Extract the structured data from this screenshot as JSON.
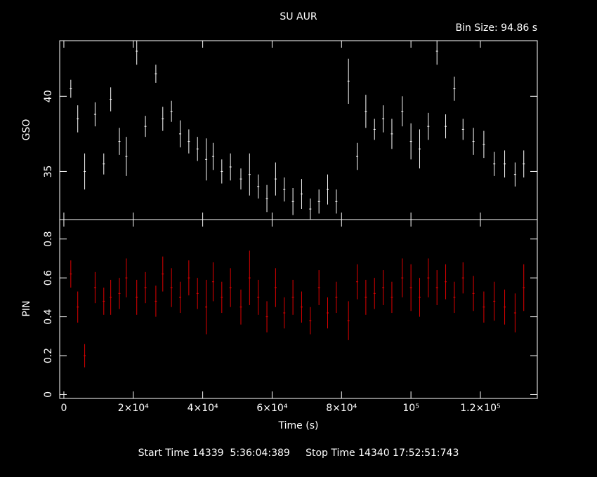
{
  "chart_data": [
    {
      "type": "errorbar",
      "title": "SU AUR",
      "annotation": "Bin Size: 94.86 s",
      "y_label": "GSO",
      "color": "#ffffff",
      "xlim": [
        -1200,
        136400
      ],
      "ylim": [
        31.8,
        43.7
      ],
      "yticks": [
        35,
        40
      ],
      "x": [
        2000,
        4000,
        6000,
        9000,
        11500,
        13500,
        16000,
        18000,
        21000,
        23500,
        26500,
        28500,
        31000,
        33500,
        36000,
        38500,
        41000,
        43000,
        45500,
        48000,
        51000,
        53500,
        56000,
        58500,
        61000,
        63500,
        66000,
        68500,
        71000,
        73500,
        76000,
        78500,
        82000,
        84500,
        87000,
        89500,
        92000,
        94500,
        97500,
        100000,
        102500,
        105000,
        107500,
        110000,
        112500,
        115000,
        118000,
        121000,
        124000,
        127000,
        130000,
        132500
      ],
      "values": [
        40.5,
        38.5,
        35,
        38.8,
        35.5,
        39.8,
        37,
        36,
        43,
        38,
        41.5,
        38.5,
        39,
        37.5,
        37,
        36.5,
        35.8,
        36,
        35,
        35.3,
        34.5,
        34.8,
        34,
        33.2,
        34.5,
        33.8,
        33,
        33.5,
        32.5,
        33,
        33.8,
        33,
        41,
        36,
        39,
        37.8,
        38.5,
        37.5,
        39,
        37,
        36.5,
        38,
        43,
        38,
        40.5,
        37.8,
        37,
        36.8,
        35.5,
        35.5,
        34.8,
        35.5
      ],
      "errors": [
        0.6,
        0.9,
        1.2,
        0.8,
        0.7,
        0.8,
        0.9,
        1.3,
        0.9,
        0.7,
        0.6,
        0.8,
        0.7,
        0.9,
        0.8,
        0.8,
        1.4,
        0.9,
        0.8,
        0.9,
        0.7,
        1.4,
        0.8,
        0.9,
        1.1,
        0.8,
        0.9,
        1.0,
        0.7,
        0.8,
        1.0,
        0.8,
        1.5,
        0.9,
        1.1,
        0.7,
        0.9,
        1.0,
        1.0,
        1.2,
        1.3,
        0.9,
        0.9,
        0.8,
        0.8,
        0.7,
        0.9,
        0.9,
        0.8,
        0.9,
        0.8,
        0.9
      ]
    },
    {
      "type": "errorbar",
      "y_label": "PIN",
      "x_label": "Time (s)",
      "color": "#e00000",
      "footer": "Start Time 14339  5:36:04:389     Stop Time 14340 17:52:51:743",
      "xlim": [
        -1200,
        136400
      ],
      "ylim": [
        -0.02,
        0.9
      ],
      "yticks": [
        0,
        0.2,
        0.4,
        0.6,
        0.8
      ],
      "xticks": [
        0,
        {
          "value": 20000,
          "label": "2×10⁴"
        },
        {
          "value": 40000,
          "label": "4×10⁴"
        },
        {
          "value": 60000,
          "label": "6×10⁴"
        },
        {
          "value": 80000,
          "label": "8×10⁴"
        },
        {
          "value": 100000,
          "label": "10⁵"
        },
        {
          "value": 120000,
          "label": "1.2×10⁵"
        }
      ],
      "x": [
        2000,
        4000,
        6000,
        9000,
        11500,
        13500,
        16000,
        18000,
        21000,
        23500,
        26500,
        28500,
        31000,
        33500,
        36000,
        38500,
        41000,
        43000,
        45500,
        48000,
        51000,
        53500,
        56000,
        58500,
        61000,
        63500,
        66000,
        68500,
        71000,
        73500,
        76000,
        78500,
        82000,
        84500,
        87000,
        89500,
        92000,
        94500,
        97500,
        100000,
        102500,
        105000,
        107500,
        110000,
        112500,
        115000,
        118000,
        121000,
        124000,
        127000,
        130000,
        132500
      ],
      "values": [
        0.62,
        0.45,
        0.2,
        0.55,
        0.48,
        0.5,
        0.52,
        0.6,
        0.5,
        0.55,
        0.48,
        0.62,
        0.55,
        0.5,
        0.6,
        0.52,
        0.45,
        0.58,
        0.5,
        0.55,
        0.45,
        0.6,
        0.5,
        0.4,
        0.55,
        0.42,
        0.5,
        0.45,
        0.38,
        0.55,
        0.42,
        0.5,
        0.38,
        0.58,
        0.5,
        0.52,
        0.55,
        0.5,
        0.6,
        0.55,
        0.5,
        0.6,
        0.55,
        0.58,
        0.5,
        0.6,
        0.52,
        0.45,
        0.48,
        0.45,
        0.42,
        0.55
      ],
      "errors": [
        0.07,
        0.08,
        0.06,
        0.08,
        0.07,
        0.09,
        0.08,
        0.1,
        0.09,
        0.08,
        0.08,
        0.09,
        0.1,
        0.08,
        0.09,
        0.08,
        0.14,
        0.1,
        0.08,
        0.1,
        0.09,
        0.14,
        0.09,
        0.08,
        0.1,
        0.08,
        0.09,
        0.08,
        0.07,
        0.09,
        0.08,
        0.08,
        0.1,
        0.09,
        0.09,
        0.08,
        0.09,
        0.08,
        0.1,
        0.12,
        0.1,
        0.1,
        0.09,
        0.09,
        0.08,
        0.08,
        0.09,
        0.08,
        0.1,
        0.09,
        0.1,
        0.12
      ]
    }
  ]
}
